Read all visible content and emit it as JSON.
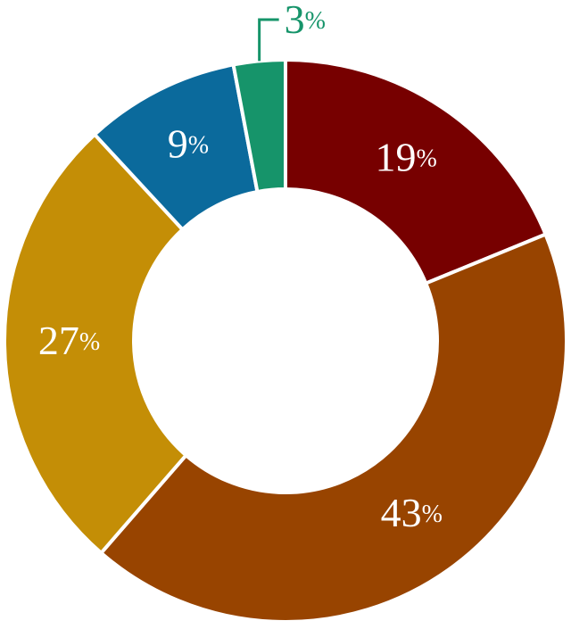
{
  "chart_data": {
    "type": "donut",
    "values": [
      19,
      43,
      27,
      9,
      3
    ],
    "value_labels": [
      "19%",
      "43%",
      "27%",
      "9%",
      "3%"
    ],
    "colors": [
      "#770000",
      "#984400",
      "#c48e06",
      "#0b6a9c",
      "#16946a"
    ]
  }
}
